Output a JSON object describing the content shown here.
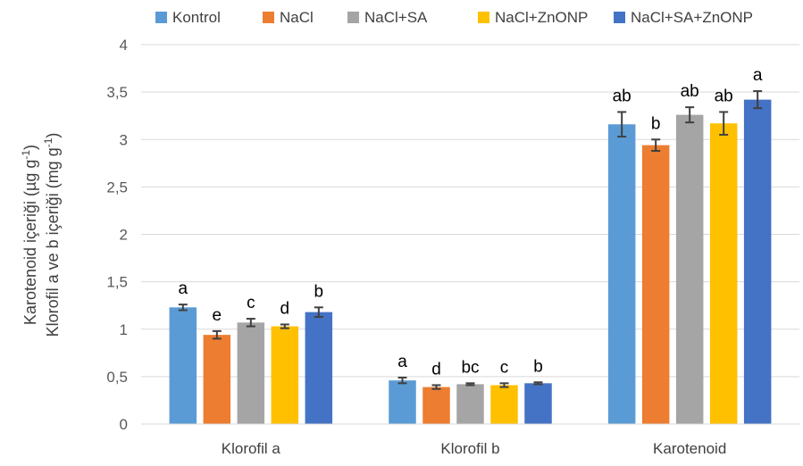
{
  "chart_data": {
    "type": "bar",
    "ylabel_line1": "Karotenoid içeriği (µg g",
    "ylabel_line1_sup": "-1",
    "ylabel_line1_end": ")",
    "ylabel_line2": "Klorofil a ve b içeriği (mg g",
    "ylabel_line2_sup": "-1",
    "ylabel_line2_end": ")",
    "ylim": [
      0,
      4
    ],
    "yticks": [
      0,
      0.5,
      1,
      1.5,
      2,
      2.5,
      3,
      3.5,
      4
    ],
    "ytick_labels": [
      "0",
      "0,5",
      "1",
      "1,5",
      "2",
      "2,5",
      "3",
      "3,5",
      "4"
    ],
    "grid": true,
    "legend": "top",
    "categories": [
      "Klorofil a",
      "Klorofil b",
      "Karotenoid"
    ],
    "series": [
      {
        "name": "Kontrol",
        "color": "#5B9BD5",
        "values": [
          1.23,
          0.46,
          3.16
        ],
        "errors": [
          0.03,
          0.03,
          0.13
        ],
        "letters": [
          "a",
          "a",
          "ab"
        ]
      },
      {
        "name": "NaCl",
        "color": "#ED7D31",
        "values": [
          0.94,
          0.39,
          2.94
        ],
        "errors": [
          0.04,
          0.02,
          0.06
        ],
        "letters": [
          "e",
          "d",
          "b"
        ]
      },
      {
        "name": "NaCl+SA",
        "color": "#A5A5A5",
        "values": [
          1.07,
          0.42,
          3.26
        ],
        "errors": [
          0.04,
          0.01,
          0.08
        ],
        "letters": [
          "c",
          "bc",
          "ab"
        ]
      },
      {
        "name": "NaCl+ZnONP",
        "color": "#FFC000",
        "values": [
          1.03,
          0.41,
          3.17
        ],
        "errors": [
          0.02,
          0.02,
          0.12
        ],
        "letters": [
          "d",
          "c",
          "ab"
        ]
      },
      {
        "name": "NaCl+SA+ZnONP",
        "color": "#4472C4",
        "values": [
          1.18,
          0.43,
          3.42
        ],
        "errors": [
          0.05,
          0.01,
          0.09
        ],
        "letters": [
          "b",
          "b",
          "a"
        ]
      }
    ]
  }
}
